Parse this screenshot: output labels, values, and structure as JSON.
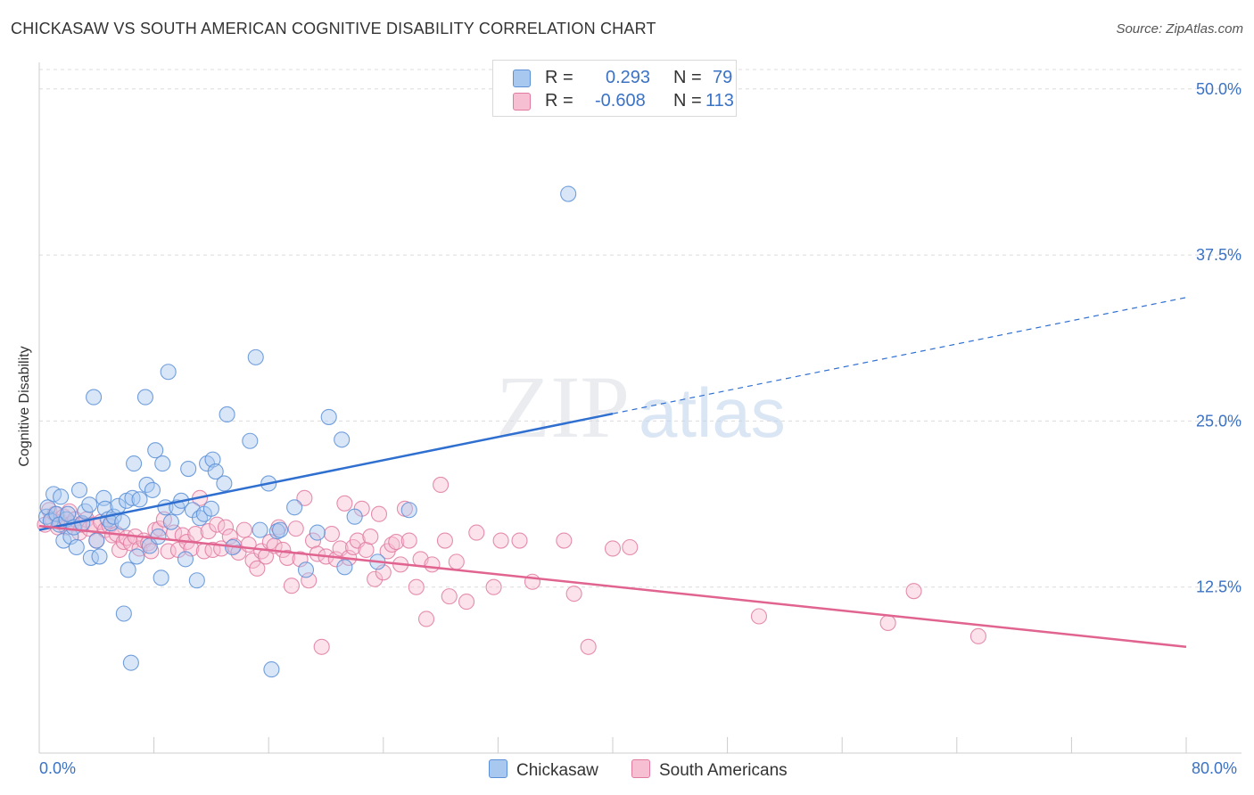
{
  "header": {
    "title": "CHICKASAW VS SOUTH AMERICAN COGNITIVE DISABILITY CORRELATION CHART",
    "source": "Source: ZipAtlas.com"
  },
  "watermark": {
    "zip": "ZIP",
    "atlas": "atlas"
  },
  "legend": {
    "rows": [
      {
        "r_label": "R =",
        "r_value": "0.293",
        "n_label": "N =",
        "n_value": "79",
        "color": "#a9c8f0",
        "border": "#5b8fd6"
      },
      {
        "r_label": "R =",
        "r_value": "-0.608",
        "n_label": "N =",
        "n_value": "113",
        "color": "#f7bfd2",
        "border": "#e07aa0"
      }
    ]
  },
  "bottom_legend": [
    {
      "label": "Chickasaw",
      "color": "#a9c8f0",
      "border": "#5b8fd6"
    },
    {
      "label": "South Americans",
      "color": "#f7bfd2",
      "border": "#e07aa0"
    }
  ],
  "chart_data": {
    "type": "scatter",
    "title": "CHICKASAW VS SOUTH AMERICAN COGNITIVE DISABILITY CORRELATION CHART",
    "xlabel": "",
    "ylabel": "Cognitive Disability",
    "xlim": [
      0,
      80
    ],
    "ylim": [
      0,
      52
    ],
    "x_tick_labels": [
      "0.0%",
      "80.0%"
    ],
    "y_ticks": [
      12.5,
      25.0,
      37.5,
      50.0
    ],
    "y_tick_labels": [
      "12.5%",
      "25.0%",
      "37.5%",
      "50.0%"
    ],
    "grid": true,
    "colors": {
      "chickasaw": "#5b8fd6",
      "chickasaw_fill": "#a9c8f0",
      "chickasaw_line": "#2f6fd0",
      "south": "#e07aa0",
      "south_fill": "#f7bfd2",
      "south_line": "#e0648f"
    },
    "series": [
      {
        "name": "Chickasaw",
        "points": [
          [
            0.5,
            17.8
          ],
          [
            0.6,
            18.5
          ],
          [
            0.8,
            17.5
          ],
          [
            1.0,
            19.5
          ],
          [
            1.2,
            18.0
          ],
          [
            1.4,
            17.2
          ],
          [
            1.5,
            19.3
          ],
          [
            1.7,
            16.0
          ],
          [
            1.9,
            17.6
          ],
          [
            2.0,
            18.0
          ],
          [
            2.2,
            16.3
          ],
          [
            2.4,
            17.0
          ],
          [
            2.6,
            15.5
          ],
          [
            2.8,
            19.8
          ],
          [
            3.0,
            17.3
          ],
          [
            3.2,
            18.2
          ],
          [
            3.5,
            18.7
          ],
          [
            3.6,
            14.7
          ],
          [
            3.8,
            26.8
          ],
          [
            4.0,
            16.0
          ],
          [
            4.2,
            14.8
          ],
          [
            4.5,
            19.2
          ],
          [
            4.6,
            18.4
          ],
          [
            4.8,
            17.6
          ],
          [
            5.0,
            17.3
          ],
          [
            5.2,
            17.8
          ],
          [
            5.5,
            18.6
          ],
          [
            5.8,
            17.4
          ],
          [
            5.9,
            10.5
          ],
          [
            6.1,
            19.0
          ],
          [
            6.2,
            13.8
          ],
          [
            6.4,
            6.8
          ],
          [
            6.5,
            19.2
          ],
          [
            6.6,
            21.8
          ],
          [
            6.8,
            14.8
          ],
          [
            7.0,
            19.1
          ],
          [
            7.4,
            26.8
          ],
          [
            7.5,
            20.2
          ],
          [
            7.7,
            15.6
          ],
          [
            7.9,
            19.8
          ],
          [
            8.1,
            22.8
          ],
          [
            8.3,
            16.3
          ],
          [
            8.5,
            13.2
          ],
          [
            8.6,
            21.8
          ],
          [
            8.8,
            18.5
          ],
          [
            9.0,
            28.7
          ],
          [
            9.2,
            17.4
          ],
          [
            9.6,
            18.5
          ],
          [
            9.9,
            19.0
          ],
          [
            10.2,
            14.6
          ],
          [
            10.4,
            21.4
          ],
          [
            10.7,
            18.3
          ],
          [
            11.0,
            13.0
          ],
          [
            11.2,
            17.7
          ],
          [
            11.5,
            18.0
          ],
          [
            11.7,
            21.8
          ],
          [
            12.0,
            18.4
          ],
          [
            12.1,
            22.1
          ],
          [
            12.3,
            21.2
          ],
          [
            12.9,
            20.3
          ],
          [
            13.1,
            25.5
          ],
          [
            13.5,
            15.5
          ],
          [
            14.7,
            23.5
          ],
          [
            15.1,
            29.8
          ],
          [
            15.4,
            16.8
          ],
          [
            16.0,
            20.3
          ],
          [
            16.2,
            6.3
          ],
          [
            16.6,
            16.7
          ],
          [
            16.8,
            16.8
          ],
          [
            17.8,
            18.5
          ],
          [
            18.6,
            13.8
          ],
          [
            19.4,
            16.6
          ],
          [
            20.2,
            25.3
          ],
          [
            21.1,
            23.6
          ],
          [
            21.3,
            14.0
          ],
          [
            22.0,
            17.8
          ],
          [
            23.6,
            14.4
          ],
          [
            25.8,
            18.3
          ],
          [
            36.9,
            42.1
          ]
        ]
      },
      {
        "name": "South Americans",
        "points": [
          [
            0.4,
            17.2
          ],
          [
            0.7,
            18.3
          ],
          [
            0.9,
            17.6
          ],
          [
            1.1,
            18.0
          ],
          [
            1.3,
            17.0
          ],
          [
            1.5,
            17.4
          ],
          [
            1.7,
            17.8
          ],
          [
            1.9,
            17.0
          ],
          [
            2.1,
            18.2
          ],
          [
            2.3,
            17.3
          ],
          [
            2.5,
            17.6
          ],
          [
            2.8,
            16.6
          ],
          [
            3.0,
            17.2
          ],
          [
            3.3,
            17.6
          ],
          [
            3.5,
            16.9
          ],
          [
            3.8,
            17.2
          ],
          [
            4.0,
            16.0
          ],
          [
            4.3,
            17.4
          ],
          [
            4.6,
            16.8
          ],
          [
            4.9,
            17.1
          ],
          [
            5.1,
            16.4
          ],
          [
            5.4,
            16.5
          ],
          [
            5.6,
            15.3
          ],
          [
            5.9,
            15.9
          ],
          [
            6.1,
            16.2
          ],
          [
            6.4,
            15.8
          ],
          [
            6.7,
            16.3
          ],
          [
            7.0,
            15.4
          ],
          [
            7.3,
            16.0
          ],
          [
            7.6,
            15.8
          ],
          [
            7.8,
            15.2
          ],
          [
            8.1,
            16.8
          ],
          [
            8.4,
            16.9
          ],
          [
            8.7,
            17.6
          ],
          [
            9.0,
            15.2
          ],
          [
            9.4,
            16.6
          ],
          [
            9.7,
            15.3
          ],
          [
            10.0,
            16.4
          ],
          [
            10.3,
            15.9
          ],
          [
            10.6,
            15.4
          ],
          [
            10.9,
            16.5
          ],
          [
            11.2,
            19.2
          ],
          [
            11.5,
            15.2
          ],
          [
            11.8,
            16.7
          ],
          [
            12.1,
            15.3
          ],
          [
            12.4,
            17.2
          ],
          [
            12.7,
            15.4
          ],
          [
            13.0,
            17.0
          ],
          [
            13.3,
            16.3
          ],
          [
            13.6,
            15.6
          ],
          [
            13.9,
            15.1
          ],
          [
            14.3,
            16.8
          ],
          [
            14.6,
            15.7
          ],
          [
            14.9,
            14.5
          ],
          [
            15.2,
            13.9
          ],
          [
            15.5,
            15.2
          ],
          [
            15.8,
            14.8
          ],
          [
            16.1,
            15.9
          ],
          [
            16.4,
            15.6
          ],
          [
            16.7,
            17.0
          ],
          [
            17.0,
            15.3
          ],
          [
            17.3,
            14.7
          ],
          [
            17.6,
            12.6
          ],
          [
            17.9,
            16.9
          ],
          [
            18.2,
            14.6
          ],
          [
            18.5,
            19.2
          ],
          [
            18.8,
            13.0
          ],
          [
            19.1,
            16.0
          ],
          [
            19.4,
            15.0
          ],
          [
            19.7,
            8.0
          ],
          [
            20.0,
            14.8
          ],
          [
            20.4,
            16.5
          ],
          [
            20.7,
            14.6
          ],
          [
            21.0,
            15.4
          ],
          [
            21.3,
            18.8
          ],
          [
            21.6,
            14.7
          ],
          [
            21.9,
            15.5
          ],
          [
            22.2,
            16.0
          ],
          [
            22.5,
            18.4
          ],
          [
            22.8,
            15.3
          ],
          [
            23.1,
            16.3
          ],
          [
            23.4,
            13.1
          ],
          [
            23.7,
            18.0
          ],
          [
            24.0,
            13.6
          ],
          [
            24.3,
            15.2
          ],
          [
            24.6,
            15.7
          ],
          [
            24.9,
            15.9
          ],
          [
            25.2,
            14.2
          ],
          [
            25.5,
            18.4
          ],
          [
            25.8,
            16.0
          ],
          [
            26.3,
            12.5
          ],
          [
            26.6,
            14.6
          ],
          [
            27.0,
            10.1
          ],
          [
            27.4,
            14.2
          ],
          [
            28.0,
            20.2
          ],
          [
            28.3,
            16.0
          ],
          [
            28.6,
            11.8
          ],
          [
            29.1,
            14.4
          ],
          [
            29.8,
            11.4
          ],
          [
            30.5,
            16.6
          ],
          [
            31.7,
            12.5
          ],
          [
            32.2,
            16.0
          ],
          [
            33.5,
            16.0
          ],
          [
            34.4,
            12.9
          ],
          [
            36.6,
            16.0
          ],
          [
            37.3,
            12.0
          ],
          [
            38.3,
            8.0
          ],
          [
            40.0,
            15.4
          ],
          [
            41.2,
            15.5
          ],
          [
            50.2,
            10.3
          ],
          [
            59.2,
            9.8
          ],
          [
            61.0,
            12.2
          ],
          [
            65.5,
            8.8
          ]
        ]
      }
    ],
    "trendlines": [
      {
        "series": "Chickasaw",
        "x_start": 0,
        "y_start": 16.8,
        "x_solid_end": 40,
        "x_end": 80,
        "y_end": 34.3
      },
      {
        "series": "South Americans",
        "x_start": 0,
        "y_start": 17.1,
        "x_end": 80,
        "y_end": 8.0
      }
    ]
  }
}
